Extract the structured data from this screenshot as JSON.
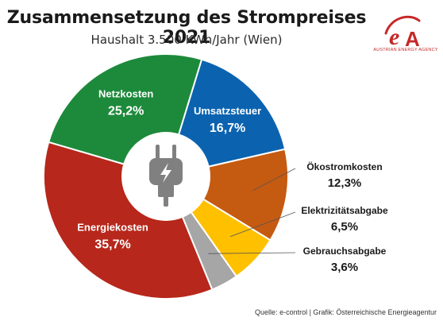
{
  "header": {
    "title": "Zusammensetzung des Strompreises 2021",
    "subtitle": "Haushalt 3.500 KWh/Jahr (Wien)"
  },
  "logo": {
    "mark": "eA",
    "caption": "AUSTRIAN ENERGY AGENCY",
    "color": "#c62828"
  },
  "center_icon": "power-plug-icon",
  "chart_data": {
    "type": "pie",
    "donut": true,
    "title": "Zusammensetzung des Strompreises 2021",
    "subtitle": "Haushalt 3.500 KWh/Jahr (Wien)",
    "unit": "%",
    "start_category": "Umsatzsteuer",
    "direction": "clockwise",
    "categories": [
      "Umsatzsteuer",
      "Ökostromkosten",
      "Elektrizitätsabgabe",
      "Gebrauchsabgabe",
      "Energiekosten",
      "Netzkosten"
    ],
    "values": [
      16.7,
      12.3,
      6.5,
      3.6,
      35.7,
      25.2
    ],
    "labels": [
      "16,7%",
      "12,3%",
      "6,5%",
      "3,6%",
      "35,7%",
      "25,2%"
    ],
    "colors": [
      "#0b63b0",
      "#c55a11",
      "#ffc000",
      "#a6a6a6",
      "#b7271b",
      "#1d8a3b"
    ],
    "label_inside": [
      true,
      false,
      false,
      false,
      true,
      true
    ]
  },
  "source": "Quelle: e-control | Grafik: Österreichische Energieagentur"
}
